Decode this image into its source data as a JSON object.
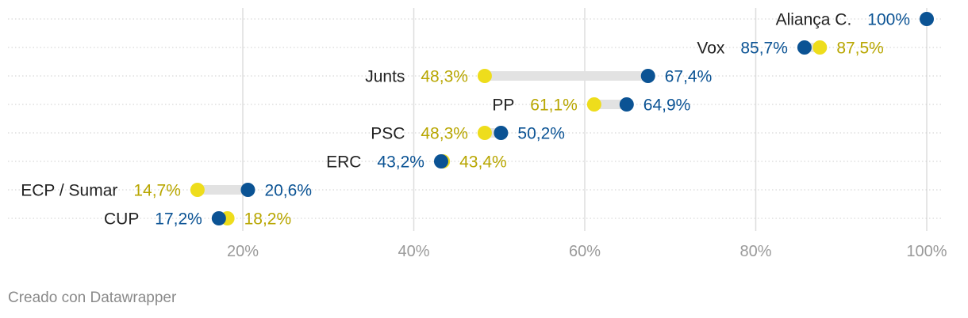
{
  "chart_data": {
    "type": "dot-range",
    "xlim": [
      0,
      100
    ],
    "x_ticks": [
      20,
      40,
      60,
      80,
      100
    ],
    "x_tick_labels": [
      "20%",
      "40%",
      "60%",
      "80%",
      "100%"
    ],
    "colors": {
      "blue": "#0B5394",
      "yellow": "#EEDD1C",
      "yellow_text": "#B8A600",
      "bar": "#E2E2E2"
    },
    "rows": [
      {
        "category": "Aliança C.",
        "blue": 100.0,
        "blue_label": "100%",
        "yellow": null,
        "yellow_label": ""
      },
      {
        "category": "Vox",
        "blue": 85.7,
        "blue_label": "85,7%",
        "yellow": 87.5,
        "yellow_label": "87,5%"
      },
      {
        "category": "Junts",
        "blue": 67.4,
        "blue_label": "67,4%",
        "yellow": 48.3,
        "yellow_label": "48,3%"
      },
      {
        "category": "PP",
        "blue": 64.9,
        "blue_label": "64,9%",
        "yellow": 61.1,
        "yellow_label": "61,1%"
      },
      {
        "category": "PSC",
        "blue": 50.2,
        "blue_label": "50,2%",
        "yellow": 48.3,
        "yellow_label": "48,3%"
      },
      {
        "category": "ERC",
        "blue": 43.2,
        "blue_label": "43,2%",
        "yellow": 43.4,
        "yellow_label": "43,4%"
      },
      {
        "category": "ECP / Sumar",
        "blue": 20.6,
        "blue_label": "20,6%",
        "yellow": 14.7,
        "yellow_label": "14,7%"
      },
      {
        "category": "CUP",
        "blue": 17.2,
        "blue_label": "17,2%",
        "yellow": 18.2,
        "yellow_label": "18,2%"
      }
    ]
  },
  "credit": "Creado con Datawrapper"
}
